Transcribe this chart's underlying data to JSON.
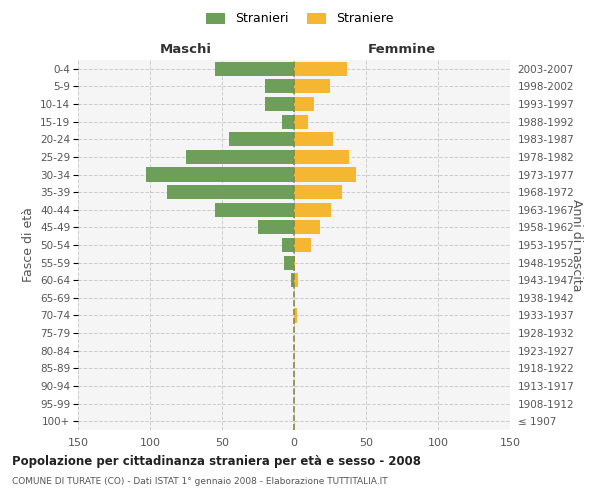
{
  "age_groups": [
    "100+",
    "95-99",
    "90-94",
    "85-89",
    "80-84",
    "75-79",
    "70-74",
    "65-69",
    "60-64",
    "55-59",
    "50-54",
    "45-49",
    "40-44",
    "35-39",
    "30-34",
    "25-29",
    "20-24",
    "15-19",
    "10-14",
    "5-9",
    "0-4"
  ],
  "birth_years": [
    "≤ 1907",
    "1908-1912",
    "1913-1917",
    "1918-1922",
    "1923-1927",
    "1928-1932",
    "1933-1937",
    "1938-1942",
    "1943-1947",
    "1948-1952",
    "1953-1957",
    "1958-1962",
    "1963-1967",
    "1968-1972",
    "1973-1977",
    "1978-1982",
    "1983-1987",
    "1988-1992",
    "1993-1997",
    "1998-2002",
    "2003-2007"
  ],
  "males": [
    0,
    0,
    0,
    0,
    0,
    0,
    0,
    0,
    2,
    7,
    8,
    25,
    55,
    88,
    103,
    75,
    45,
    8,
    20,
    20,
    55
  ],
  "females": [
    0,
    0,
    0,
    0,
    0,
    0,
    2,
    0,
    3,
    1,
    12,
    18,
    26,
    33,
    43,
    38,
    27,
    10,
    14,
    25,
    37
  ],
  "male_color": "#6d9e5a",
  "female_color": "#f5b731",
  "center_line_color": "#888844",
  "grid_color": "#cccccc",
  "bg_color": "#f5f5f5",
  "title": "Popolazione per cittadinanza straniera per età e sesso - 2008",
  "subtitle": "COMUNE DI TURATE (CO) - Dati ISTAT 1° gennaio 2008 - Elaborazione TUTTITALIA.IT",
  "header_left": "Maschi",
  "header_right": "Femmine",
  "ylabel_left": "Fasce di età",
  "ylabel_right": "Anni di nascita",
  "legend_male": "Stranieri",
  "legend_female": "Straniere",
  "xlim": 150,
  "bar_height": 0.8
}
